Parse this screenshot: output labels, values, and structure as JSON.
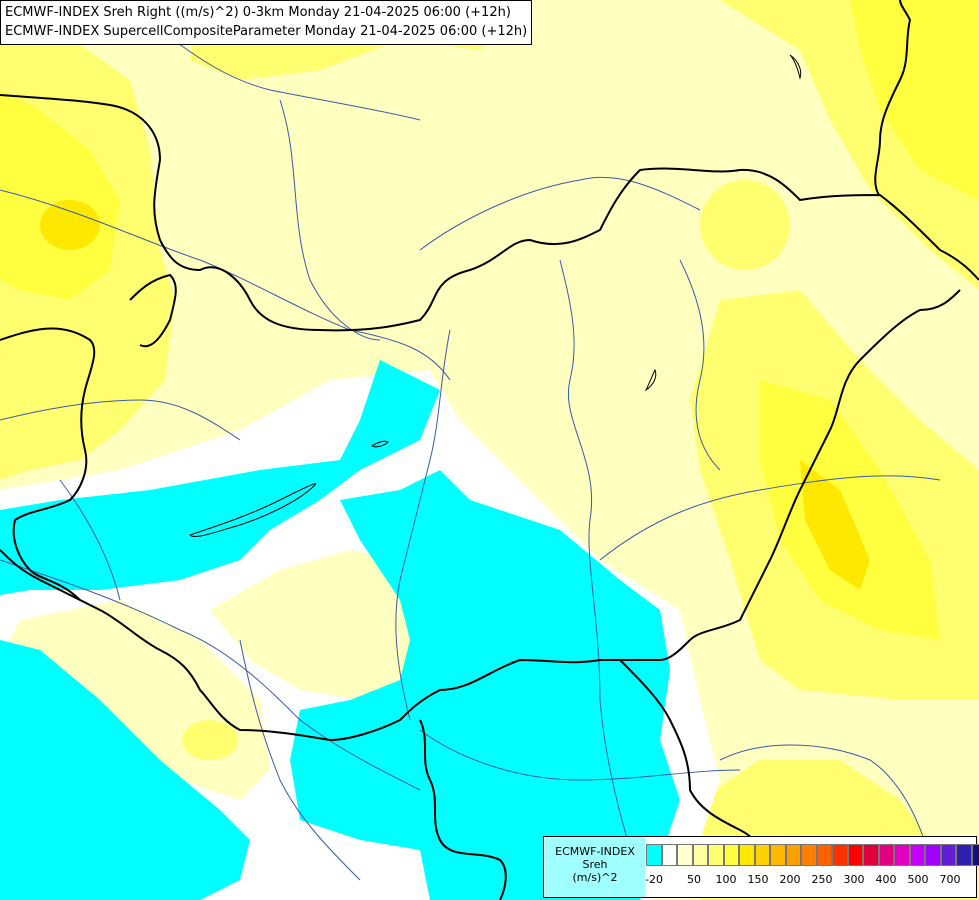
{
  "title": {
    "line1": "ECMWF-INDEX Sreh Right ((m/s)^2) 0-3km Monday 21-04-2025 06:00 (+12h)",
    "line2": "ECMWF-INDEX SupercellCompositeParameter Monday 21-04-2025 06:00 (+12h)"
  },
  "legend": {
    "title_line1": "ECMWF-INDEX",
    "title_line2": "Sreh",
    "title_line3": "(m/s)^2",
    "colors": [
      "#00ffff",
      "#ffffff",
      "#ffffd0",
      "#ffffa0",
      "#ffff70",
      "#ffff40",
      "#ffe800",
      "#ffd000",
      "#ffb800",
      "#ffa000",
      "#ff8000",
      "#ff6000",
      "#ff3000",
      "#ff0000",
      "#e00040",
      "#e00080",
      "#e000c0",
      "#c000ff",
      "#a000ff",
      "#6020d0",
      "#3020b0",
      "#101080"
    ],
    "ticks": [
      "-20",
      "50",
      "100",
      "150",
      "200",
      "250",
      "300",
      "400",
      "500",
      "700"
    ]
  }
}
